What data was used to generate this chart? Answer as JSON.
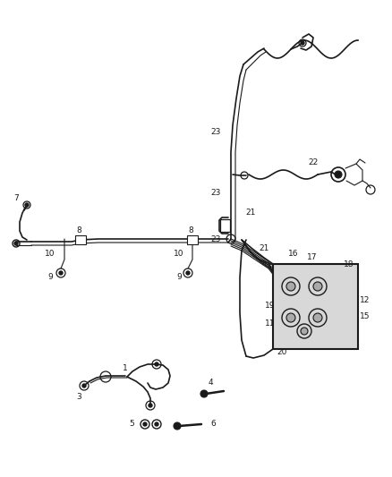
{
  "bg_color": "#ffffff",
  "line_color": "#1a1a1a",
  "label_color": "#1a1a1a",
  "fig_width": 4.38,
  "fig_height": 5.33,
  "dpi": 100
}
